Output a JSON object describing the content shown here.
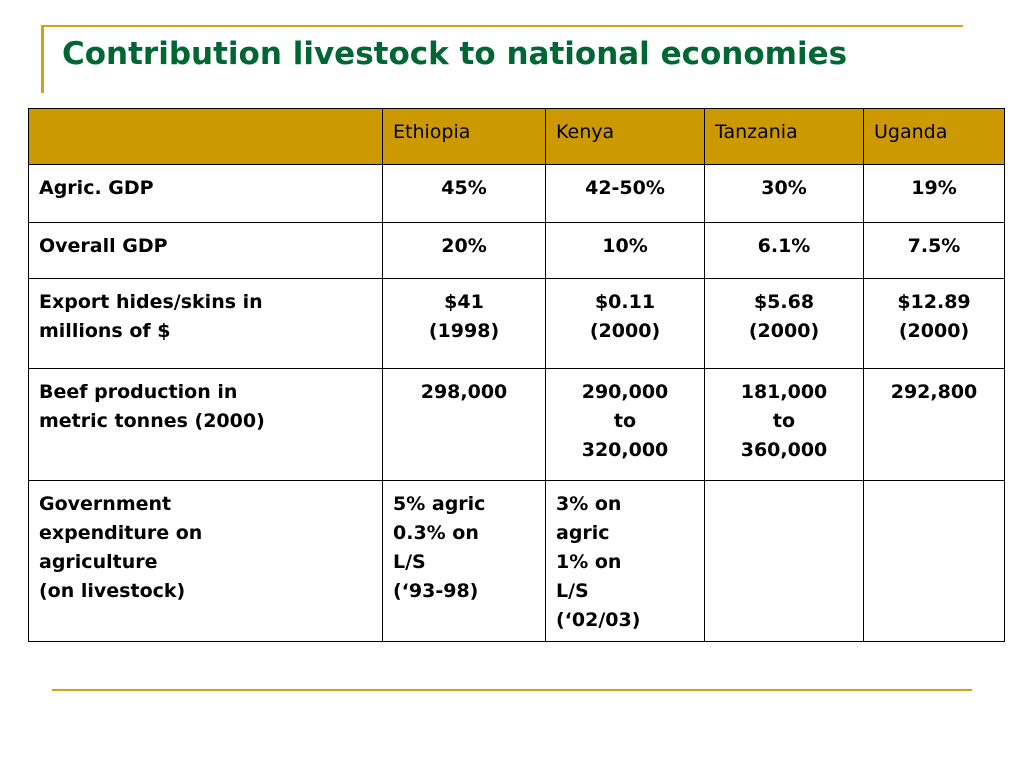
{
  "slide": {
    "title": "Contribution livestock to national economies"
  },
  "colors": {
    "title": "#006633",
    "accent": "#d4a017",
    "header_fill": "#cc9900"
  },
  "table": {
    "headers": [
      "",
      "Ethiopia",
      "Kenya",
      "Tanzania",
      "Uganda"
    ],
    "rows": [
      {
        "label": "Agric. GDP",
        "cells": [
          "45%",
          "42-50%",
          "30%",
          "19%"
        ]
      },
      {
        "label": "Overall GDP",
        "cells": [
          "20%",
          "10%",
          "6.1%",
          "7.5%"
        ]
      },
      {
        "label": "Export hides/skins in\nmillions of $",
        "cells": [
          "$41\n(1998)",
          "$0.11\n(2000)",
          "$5.68\n(2000)",
          "$12.89\n(2000)"
        ]
      },
      {
        "label": "Beef production in\nmetric tonnes (2000)",
        "cells": [
          "298,000",
          "290,000\nto\n320,000",
          "181,000\nto\n360,000",
          "292,800"
        ]
      },
      {
        "label": "Government\nexpenditure on\nagriculture\n(on livestock)",
        "cells": [
          "5% agric\n0.3% on\nL/S\n(‘93-98)",
          "3% on\nagric\n1% on\nL/S\n(‘02/03)",
          "",
          ""
        ]
      }
    ]
  }
}
